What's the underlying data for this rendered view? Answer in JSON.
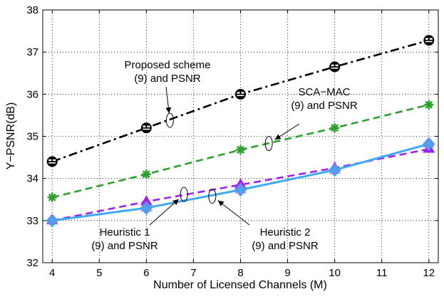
{
  "chart_data": {
    "type": "line",
    "title": "",
    "xlabel": "Number of Licensed Channels (M)",
    "ylabel": "Y−PSNR(dB)",
    "xlim": [
      3.8,
      12.2
    ],
    "ylim": [
      32,
      38
    ],
    "xticks": [
      4,
      5,
      6,
      7,
      8,
      9,
      10,
      11,
      12
    ],
    "yticks": [
      32,
      33,
      34,
      35,
      36,
      37,
      38
    ],
    "grid": true,
    "x": [
      4,
      6,
      8,
      10,
      12
    ],
    "series": [
      {
        "name": "Proposed scheme",
        "values": [
          34.4,
          35.2,
          36.0,
          36.65,
          37.28
        ],
        "color": "#000000",
        "dash": "dashdot",
        "marker": "face-circle"
      },
      {
        "name": "SCA-MAC",
        "values": [
          33.55,
          34.1,
          34.68,
          35.2,
          35.75
        ],
        "color": "#2ca02c",
        "dash": "dashed",
        "marker": "asterisk"
      },
      {
        "name": "Heuristic 1",
        "values": [
          33.0,
          33.45,
          33.85,
          34.25,
          34.7
        ],
        "color": "#a020f0",
        "dash": "dashed",
        "marker": "triangle"
      },
      {
        "name": "Heuristic 2",
        "values": [
          33.0,
          33.3,
          33.73,
          34.2,
          34.82
        ],
        "color": "#3fa9f5",
        "dash": "solid",
        "marker": "diamond"
      }
    ],
    "annotations": [
      {
        "lines": [
          "Proposed scheme",
          "(9) and PSNR"
        ],
        "target_x": 6.5,
        "target_y": 35.38
      },
      {
        "lines": [
          "SCA−MAC",
          "(9) and PSNR"
        ],
        "target_x": 8.6,
        "target_y": 34.83
      },
      {
        "lines": [
          "Heuristic 1",
          "(9) and PSNR"
        ],
        "target_x": 6.8,
        "target_y": 33.62
      },
      {
        "lines": [
          "Heuristic 2",
          "(9) and PSNR"
        ],
        "target_x": 7.4,
        "target_y": 33.58
      }
    ]
  }
}
